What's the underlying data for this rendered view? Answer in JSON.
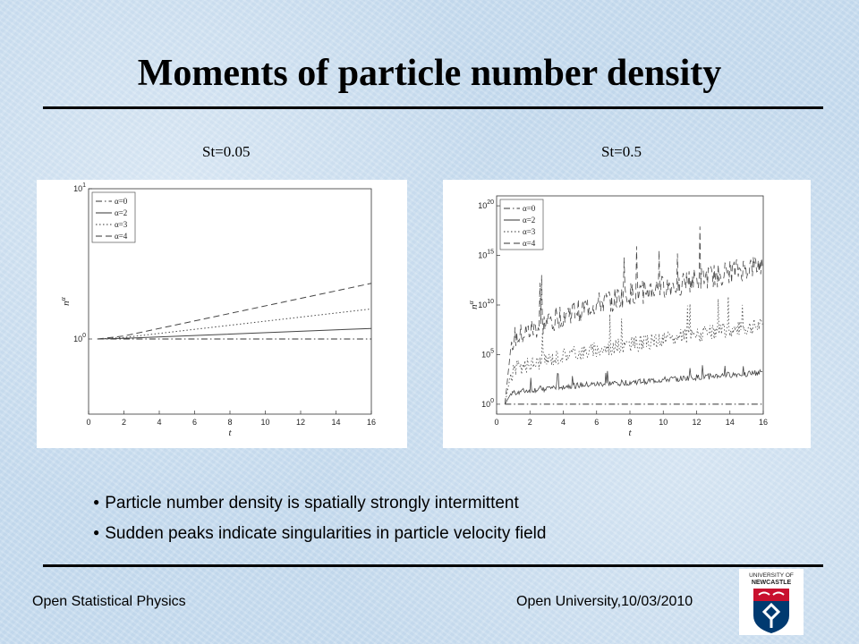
{
  "slide": {
    "title": "Moments of particle number density"
  },
  "panels": [
    {
      "label": "St=0.05"
    },
    {
      "label": "St=0.5"
    }
  ],
  "chart_data": [
    {
      "type": "line",
      "title": "St=0.05",
      "xlabel": "t",
      "ylabel": "n^α",
      "xlim": [
        0,
        16
      ],
      "ylim_log10": [
        -0.5,
        1
      ],
      "x_ticks": [
        "0",
        "2",
        "4",
        "6",
        "8",
        "10",
        "12",
        "14",
        "16"
      ],
      "y_ticks": [
        {
          "value": 0,
          "label": "10^0"
        },
        {
          "value": 1,
          "label": "10^1"
        }
      ],
      "legend_position": "top-left",
      "series": [
        {
          "name": "α=0",
          "style": "dash-dot",
          "x": [
            0.5,
            16
          ],
          "log10_y": [
            0,
            0
          ]
        },
        {
          "name": "α=2",
          "style": "solid",
          "x": [
            0.5,
            2,
            16
          ],
          "log10_y": [
            0,
            0.005,
            0.07
          ]
        },
        {
          "name": "α=3",
          "style": "dotted",
          "x": [
            0.5,
            2,
            16
          ],
          "log10_y": [
            0,
            0.01,
            0.2
          ]
        },
        {
          "name": "α=4",
          "style": "dashed",
          "x": [
            0.5,
            2,
            16
          ],
          "log10_y": [
            0,
            0.02,
            0.37
          ]
        }
      ]
    },
    {
      "type": "line",
      "title": "St=0.5",
      "xlabel": "t",
      "ylabel": "n^α",
      "xlim": [
        0,
        16
      ],
      "ylim_log10": [
        -1,
        21
      ],
      "x_ticks": [
        "0",
        "2",
        "4",
        "6",
        "8",
        "10",
        "12",
        "14",
        "16"
      ],
      "y_ticks": [
        {
          "value": 0,
          "label": "10^0"
        },
        {
          "value": 5,
          "label": "10^5"
        },
        {
          "value": 10,
          "label": "10^10"
        },
        {
          "value": 15,
          "label": "10^15"
        },
        {
          "value": 20,
          "label": "10^20"
        }
      ],
      "legend_position": "top-left",
      "series": [
        {
          "name": "α=0",
          "style": "dash-dot",
          "x": [
            0.5,
            16
          ],
          "log10_y": [
            0,
            0
          ]
        },
        {
          "name": "α=2",
          "style": "solid",
          "x": [
            0.5,
            1,
            4,
            8,
            12,
            16
          ],
          "log10_y": [
            0,
            1.2,
            1.8,
            2.2,
            2.7,
            3.2
          ]
        },
        {
          "name": "α=3",
          "style": "dotted",
          "x": [
            0.5,
            1,
            4,
            8,
            12,
            16
          ],
          "log10_y": [
            0,
            3.5,
            5,
            6,
            7,
            8
          ]
        },
        {
          "name": "α=4",
          "style": "dashed",
          "x": [
            0.5,
            1,
            4,
            8,
            12,
            16
          ],
          "log10_y": [
            0,
            6.5,
            9,
            11,
            12.5,
            14
          ]
        }
      ],
      "note": "series fluctuate strongly with sudden peaks"
    }
  ],
  "bullets": [
    "Particle number density is spatially strongly intermittent",
    "Sudden peaks indicate singularities in particle velocity field"
  ],
  "footer": {
    "left": "Open Statistical Physics",
    "right": "Open University,10/03/2010"
  },
  "logo": {
    "icon": "university-crest-icon",
    "text": [
      "UNIVERSITY OF",
      "NEWCASTLE"
    ],
    "colors": {
      "red": "#c8102e",
      "blue": "#003a70"
    }
  }
}
